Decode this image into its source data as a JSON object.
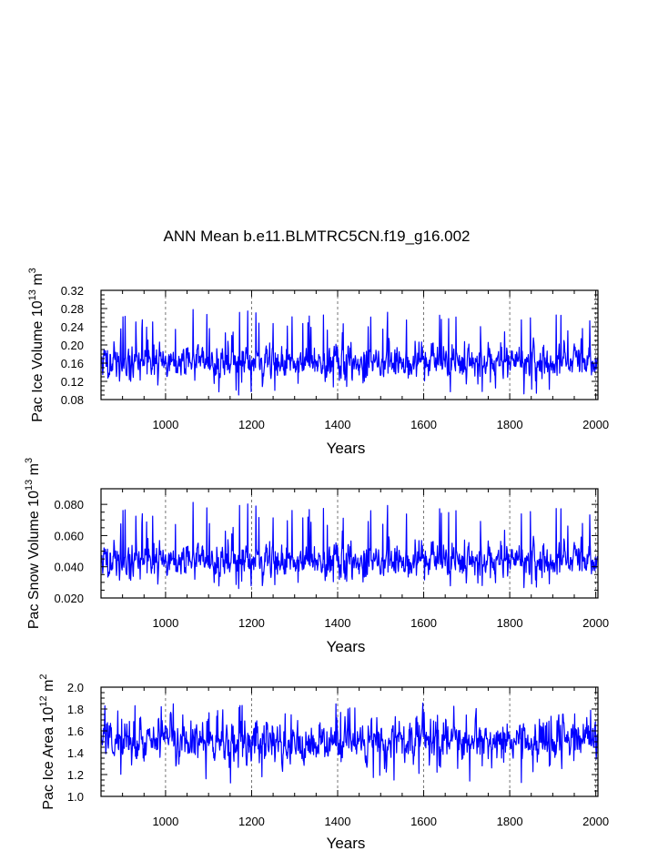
{
  "title": "ANN Mean b.e11.BLMTRC5CN.f19_g16.002",
  "colors": {
    "series": "#0000ff",
    "axis": "#000000",
    "grid": "#555555"
  },
  "chart_data": [
    {
      "id": "ice-volume",
      "type": "line",
      "xlabel": "Years",
      "ylabel": {
        "prefix": "Pac Ice Volume 10",
        "exp1": "13",
        "mid": " m",
        "exp2": "3"
      },
      "xlim": [
        850,
        2005
      ],
      "ylim": [
        0.08,
        0.32
      ],
      "xticks": [
        1000,
        1200,
        1400,
        1600,
        1800,
        2000
      ],
      "xtick_labels": [
        "1000",
        "1200",
        "1400",
        "1600",
        "1800",
        "2000"
      ],
      "yticks": [
        0.08,
        0.12,
        0.16,
        0.2,
        0.24,
        0.28,
        0.32
      ],
      "ytick_labels": [
        "0.08",
        "0.12",
        "0.16",
        "0.20",
        "0.24",
        "0.28",
        "0.32"
      ],
      "grid": "vertical dashed at x ticks",
      "series": [
        {
          "name": "Pac Ice Volume",
          "mean": 0.163,
          "noise": 0.022,
          "spike_max": 0.28,
          "min": 0.09,
          "seed": 11
        }
      ]
    },
    {
      "id": "snow-volume",
      "type": "line",
      "xlabel": "Years",
      "ylabel": {
        "prefix": "Pac Snow Volume 10",
        "exp1": "13",
        "mid": " m",
        "exp2": "3"
      },
      "xlim": [
        850,
        2005
      ],
      "ylim": [
        0.02,
        0.09
      ],
      "xticks": [
        1000,
        1200,
        1400,
        1600,
        1800,
        2000
      ],
      "xtick_labels": [
        "1000",
        "1200",
        "1400",
        "1600",
        "1800",
        "2000"
      ],
      "yticks": [
        0.02,
        0.04,
        0.06,
        0.08
      ],
      "ytick_labels": [
        "0.020",
        "0.040",
        "0.060",
        "0.080"
      ],
      "grid": "vertical dashed at x ticks",
      "series": [
        {
          "name": "Pac Snow Volume",
          "mean": 0.044,
          "noise": 0.0065,
          "spike_max": 0.082,
          "min": 0.026,
          "seed": 11
        }
      ]
    },
    {
      "id": "ice-area",
      "type": "line",
      "xlabel": "Years",
      "ylabel": {
        "prefix": "Pac Ice Area 10",
        "exp1": "12",
        "mid": " m",
        "exp2": "2"
      },
      "xlim": [
        850,
        2005
      ],
      "ylim": [
        1.0,
        2.0
      ],
      "xticks": [
        1000,
        1200,
        1400,
        1600,
        1800,
        2000
      ],
      "xtick_labels": [
        "1000",
        "1200",
        "1400",
        "1600",
        "1800",
        "2000"
      ],
      "yticks": [
        1.0,
        1.2,
        1.4,
        1.6,
        1.8,
        2.0
      ],
      "ytick_labels": [
        "1.0",
        "1.2",
        "1.4",
        "1.6",
        "1.8",
        "2.0"
      ],
      "grid": "vertical dashed at x ticks",
      "series": [
        {
          "name": "Pac Ice Area",
          "mean": 1.5,
          "noise": 0.11,
          "spike_max": 1.86,
          "min": 1.12,
          "seed": 29
        }
      ]
    }
  ]
}
